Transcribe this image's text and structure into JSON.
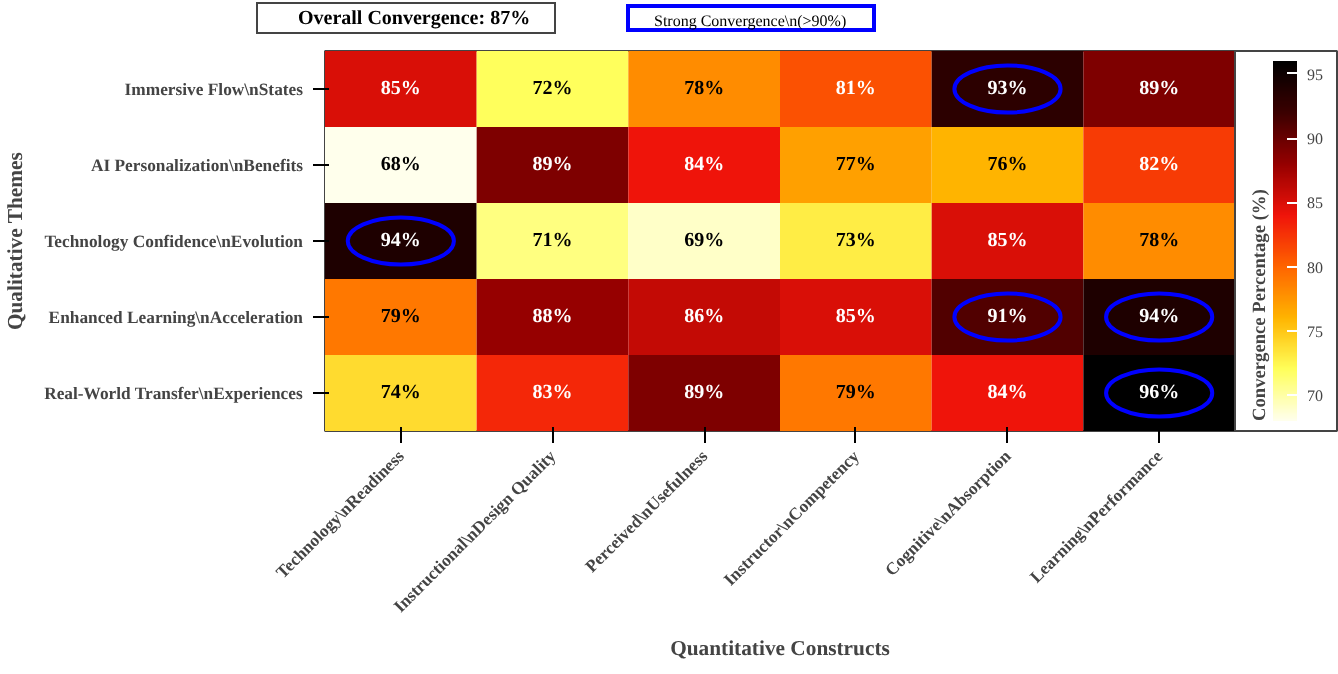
{
  "chart_data": {
    "type": "heatmap",
    "categories": [
      "Technology\\nReadiness",
      "Instructional\\nDesign Quality",
      "Perceived\\nUsefulness",
      "Instructor\\nCompetency",
      "Cognitive\\nAbsorption",
      "Learning\\nPerformance"
    ],
    "y_categories": [
      "Immersive Flow\\nStates",
      "AI Personalization\\nBenefits",
      "Technology Confidence\\nEvolution",
      "Enhanced Learning\\nAcceleration",
      "Real-World Transfer\\nExperiences"
    ],
    "cells": [
      [
        85,
        72,
        78,
        81,
        93,
        89
      ],
      [
        68,
        89,
        84,
        77,
        76,
        82
      ],
      [
        94,
        71,
        69,
        73,
        85,
        78
      ],
      [
        79,
        88,
        86,
        85,
        91,
        94
      ],
      [
        74,
        83,
        89,
        79,
        84,
        96
      ]
    ],
    "cell_labels": [
      [
        "85%",
        "72%",
        "78%",
        "81%",
        "93%",
        "89%"
      ],
      [
        "68%",
        "89%",
        "84%",
        "77%",
        "76%",
        "82%"
      ],
      [
        "94%",
        "71%",
        "69%",
        "73%",
        "85%",
        "78%"
      ],
      [
        "79%",
        "88%",
        "86%",
        "85%",
        "91%",
        "94%"
      ],
      [
        "74%",
        "83%",
        "89%",
        "79%",
        "84%",
        "96%"
      ]
    ],
    "clim": [
      68,
      96
    ],
    "cticks": [
      70,
      75,
      80,
      85,
      90,
      95
    ],
    "xlabel": "Quantitative Constructs",
    "ylabel": "Qualitative Themes",
    "clabel": "Convergence Percentage (%)",
    "annotations": [
      "Overall Convergence: 87%"
    ],
    "ref_lines": [
      {
        "axis": "c",
        "label": "Strong Convergence\\n(>90%)",
        "color": "#0000ff"
      }
    ]
  }
}
